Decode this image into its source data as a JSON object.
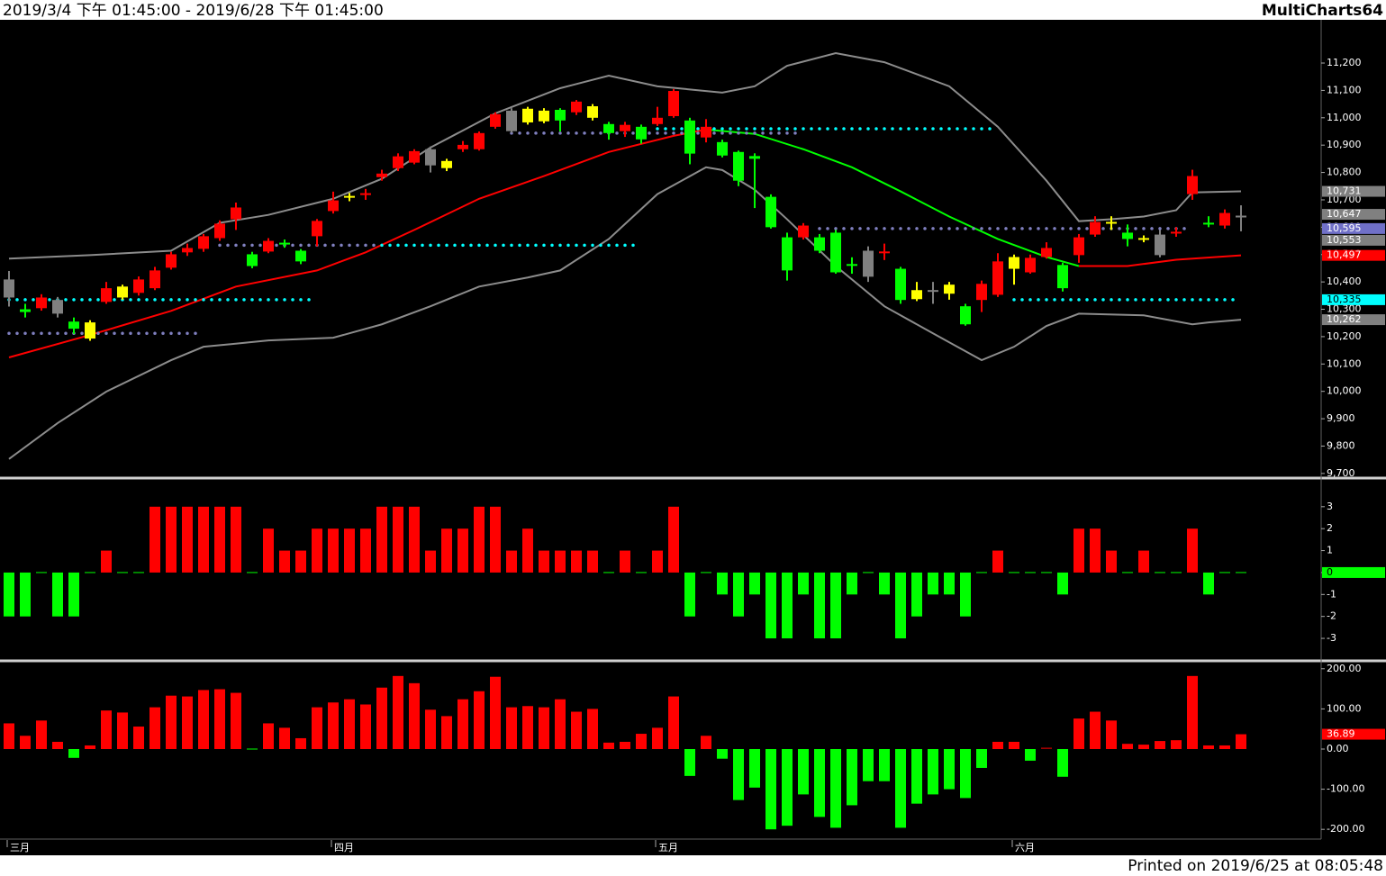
{
  "header": {
    "range": "2019/3/4 下午 01:45:00 - 2019/6/28 下午 01:45:00",
    "app": "MultiCharts64"
  },
  "footer": "Printed on 2019/6/25 at 08:05:48",
  "chart_data": [
    {
      "type": "candlestick",
      "categories": [
        "三月",
        null,
        null,
        null,
        null,
        null,
        null,
        null,
        null,
        null,
        null,
        null,
        null,
        null,
        null,
        null,
        null,
        null,
        null,
        null,
        "四月",
        null,
        null,
        null,
        null,
        null,
        null,
        null,
        null,
        null,
        null,
        null,
        null,
        null,
        null,
        null,
        null,
        null,
        null,
        null,
        "五月",
        null,
        null,
        null,
        null,
        null,
        null,
        null,
        null,
        null,
        null,
        null,
        null,
        null,
        null,
        null,
        null,
        null,
        null,
        null,
        null,
        null,
        "六月",
        null,
        null,
        null,
        null,
        null,
        null,
        null,
        null,
        null,
        null,
        null,
        null,
        null,
        null
      ],
      "open": [
        10409,
        10300,
        10304,
        10334,
        10255,
        10252,
        10327,
        10383,
        10360,
        10377,
        10452,
        10508,
        10521,
        10560,
        10629,
        10501,
        10511,
        10540,
        10514,
        10567,
        10659,
        10711,
        10721,
        10783,
        10816,
        10836,
        10885,
        10842,
        10885,
        10885,
        10967,
        11026,
        11033,
        11026,
        11029,
        11020,
        11042,
        10977,
        10951,
        10967,
        10977,
        11006,
        10990,
        10928,
        10911,
        10875,
        10860,
        10711,
        10563,
        10563,
        10563,
        10580,
        10462,
        10514,
        10508,
        10448,
        10370,
        10367,
        10390,
        10311,
        10334,
        10353,
        10491,
        10435,
        10491,
        10462,
        10498,
        10573,
        10616,
        10580,
        10557,
        10573,
        10580,
        10721,
        10613,
        10606,
        10639
      ],
      "high": [
        10440,
        10320,
        10355,
        10345,
        10270,
        10260,
        10400,
        10390,
        10420,
        10455,
        10510,
        10540,
        10575,
        10625,
        10690,
        10510,
        10560,
        10555,
        10520,
        10630,
        10730,
        10725,
        10740,
        10810,
        10870,
        10885,
        10895,
        10850,
        10915,
        10950,
        11020,
        11035,
        11040,
        11035,
        11035,
        11065,
        11050,
        10985,
        10985,
        10975,
        11040,
        11105,
        11000,
        10995,
        10920,
        10880,
        10870,
        10720,
        10580,
        10615,
        10575,
        10590,
        10490,
        10530,
        10540,
        10455,
        10400,
        10400,
        10400,
        10320,
        10405,
        10505,
        10500,
        10500,
        10545,
        10470,
        10575,
        10640,
        10640,
        10610,
        10570,
        10590,
        10600,
        10810,
        10640,
        10665,
        10680
      ],
      "low": [
        10310,
        10270,
        10295,
        10270,
        10210,
        10185,
        10320,
        10335,
        10350,
        10370,
        10445,
        10495,
        10510,
        10550,
        10590,
        10450,
        10505,
        10525,
        10465,
        10530,
        10650,
        10695,
        10700,
        10770,
        10805,
        10830,
        10800,
        10805,
        10875,
        10880,
        10960,
        10945,
        10975,
        10980,
        10950,
        11010,
        10990,
        10920,
        10930,
        10905,
        10970,
        11000,
        10830,
        10910,
        10855,
        10750,
        10670,
        10595,
        10405,
        10555,
        10505,
        10430,
        10430,
        10400,
        10480,
        10320,
        10330,
        10320,
        10335,
        10240,
        10290,
        10345,
        10390,
        10430,
        10485,
        10365,
        10470,
        10565,
        10590,
        10530,
        10545,
        10490,
        10565,
        10700,
        10600,
        10595,
        10585
      ],
      "close": [
        10343,
        10290,
        10343,
        10284,
        10229,
        10193,
        10377,
        10343,
        10409,
        10442,
        10501,
        10524,
        10567,
        10613,
        10672,
        10458,
        10550,
        10540,
        10475,
        10623,
        10698,
        10711,
        10721,
        10796,
        10859,
        10878,
        10826,
        10816,
        10901,
        10944,
        11013,
        10951,
        10983,
        10987,
        10990,
        11059,
        11000,
        10944,
        10974,
        10921,
        11000,
        11098,
        10869,
        10967,
        10862,
        10770,
        10850,
        10600,
        10442,
        10606,
        10514,
        10435,
        10462,
        10419,
        10508,
        10334,
        10337,
        10367,
        10357,
        10245,
        10393,
        10475,
        10448,
        10488,
        10524,
        10377,
        10563,
        10619,
        10616,
        10557,
        10557,
        10498,
        10580,
        10787,
        10613,
        10652,
        10639
      ],
      "colors": [
        "#808080",
        "#00ff00",
        "#ff0000",
        "#808080",
        "#00ff00",
        "#ffff00",
        "#ff0000",
        "#ffff00",
        "#ff0000",
        "#ff0000",
        "#ff0000",
        "#ff0000",
        "#ff0000",
        "#ff0000",
        "#ff0000",
        "#00ff00",
        "#ff0000",
        "#00ff00",
        "#00ff00",
        "#ff0000",
        "#ff0000",
        "#ffff00",
        "#ff0000",
        "#ff0000",
        "#ff0000",
        "#ff0000",
        "#808080",
        "#ffff00",
        "#ff0000",
        "#ff0000",
        "#ff0000",
        "#808080",
        "#ffff00",
        "#ffff00",
        "#00ff00",
        "#ff0000",
        "#ffff00",
        "#00ff00",
        "#ff0000",
        "#00ff00",
        "#ff0000",
        "#ff0000",
        "#00ff00",
        "#ff0000",
        "#00ff00",
        "#00ff00",
        "#00ff00",
        "#00ff00",
        "#00ff00",
        "#ff0000",
        "#00ff00",
        "#00ff00",
        "#00ff00",
        "#808080",
        "#ff0000",
        "#00ff00",
        "#ffff00",
        "#808080",
        "#ffff00",
        "#00ff00",
        "#ff0000",
        "#ff0000",
        "#ffff00",
        "#ff0000",
        "#ff0000",
        "#00ff00",
        "#ff0000",
        "#ff0000",
        "#ffff00",
        "#00ff00",
        "#ffff00",
        "#808080",
        "#ff0000",
        "#ff0000",
        "#00ff00",
        "#ff0000",
        "#808080"
      ],
      "lines": [
        {
          "color": "#8c8c8c",
          "x": [
            0,
            5,
            10,
            13,
            16,
            20,
            23,
            26,
            30,
            34,
            37,
            40,
            44,
            46,
            48,
            51,
            54,
            58,
            61,
            64,
            66,
            68,
            70,
            72,
            73,
            76
          ],
          "values": [
            10485,
            10498,
            10514,
            10616,
            10645,
            10704,
            10777,
            10891,
            11016,
            11108,
            11154,
            11115,
            11092,
            11115,
            11190,
            11236,
            11203,
            11115,
            10967,
            10770,
            10622,
            10629,
            10639,
            10662,
            10727,
            10731
          ]
        },
        {
          "color": "#8c8c8c",
          "x": [
            0,
            3,
            6,
            10,
            12,
            16,
            20,
            23,
            26,
            29,
            32,
            34,
            37,
            40,
            43,
            44,
            46,
            48,
            51,
            54,
            57,
            60,
            62,
            64,
            66,
            70,
            73,
            74,
            76
          ],
          "values": [
            9753,
            9884,
            9999,
            10114,
            10163,
            10186,
            10196,
            10245,
            10311,
            10383,
            10416,
            10442,
            10557,
            10721,
            10819,
            10809,
            10737,
            10629,
            10458,
            10311,
            10212,
            10114,
            10163,
            10239,
            10284,
            10278,
            10245,
            10252,
            10262
          ]
        },
        {
          "color": "#ff0000",
          "x": [
            0,
            5,
            10,
            14,
            19,
            22,
            25,
            29,
            33,
            37,
            41,
            43
          ],
          "values": [
            10124,
            10206,
            10294,
            10383,
            10442,
            10508,
            10590,
            10704,
            10787,
            10875,
            10934,
            10957
          ]
        },
        {
          "color": "#00ff00",
          "x": [
            43,
            46,
            49,
            52,
            55,
            58,
            61,
            64,
            66
          ],
          "values": [
            10957,
            10941,
            10885,
            10819,
            10731,
            10639,
            10557,
            10491,
            10458
          ]
        },
        {
          "color": "#ff0000",
          "x": [
            66,
            69,
            72,
            76
          ],
          "values": [
            10458,
            10458,
            10481,
            10497
          ]
        }
      ],
      "levels": [
        {
          "value": 10335,
          "from": 0,
          "to": 19,
          "color": "#00ffff"
        },
        {
          "value": 10212,
          "from": 0,
          "to": 12,
          "color": "#8080c0"
        },
        {
          "value": 10534,
          "from": 13,
          "to": 23,
          "color": "#8080c0"
        },
        {
          "value": 10534,
          "from": 23,
          "to": 39,
          "color": "#00ffff"
        },
        {
          "value": 10944,
          "from": 31,
          "to": 49,
          "color": "#8080c0"
        },
        {
          "value": 10960,
          "from": 40,
          "to": 61,
          "color": "#00ffff"
        },
        {
          "value": 10595,
          "from": 50,
          "to": 73,
          "color": "#8080c0"
        },
        {
          "value": 10335,
          "from": 62,
          "to": 76,
          "color": "#00ffff"
        }
      ],
      "price_labels": [
        {
          "value": 10731,
          "label": "10,731",
          "color": "#808080"
        },
        {
          "value": 10647,
          "label": "10,647",
          "color": "#808080"
        },
        {
          "value": 10595,
          "label": "10,595",
          "color": "#7070c8"
        },
        {
          "value": 10553,
          "label": "10,553",
          "color": "#808080"
        },
        {
          "value": 10497,
          "label": "10,497",
          "color": "#ff0000"
        },
        {
          "value": 10335,
          "label": "10,335",
          "color": "#00ffff"
        },
        {
          "value": 10262,
          "label": "10,262",
          "color": "#808080"
        }
      ],
      "ylim": [
        9693,
        11358
      ],
      "yticks": [
        {
          "value": 11200,
          "label": "11,200"
        },
        {
          "value": 11100,
          "label": "11,100"
        },
        {
          "value": 11000,
          "label": "11,000"
        },
        {
          "value": 10900,
          "label": "10,900"
        },
        {
          "value": 10800,
          "label": "10,800"
        },
        {
          "value": 10700,
          "label": "10,700"
        },
        {
          "value": 10600,
          "label": "10,600"
        },
        {
          "value": 10500,
          "label": "10,500"
        },
        {
          "value": 10400,
          "label": "10,400"
        },
        {
          "value": 10300,
          "label": "10,300"
        },
        {
          "value": 10200,
          "label": "10,200"
        },
        {
          "value": 10100,
          "label": "10,100"
        },
        {
          "value": 10000,
          "label": "10,000"
        },
        {
          "value": 9900,
          "label": "9,900"
        },
        {
          "value": 9800,
          "label": "9,800"
        },
        {
          "value": 9700,
          "label": "9,700"
        }
      ]
    },
    {
      "type": "bar",
      "values": [
        -2,
        -2,
        0,
        -2,
        -2,
        0,
        1,
        0,
        0,
        3,
        3,
        3,
        3,
        3,
        3,
        0,
        2,
        1,
        1,
        2,
        2,
        2,
        2,
        3,
        3,
        3,
        1,
        2,
        2,
        3,
        3,
        1,
        2,
        1,
        1,
        1,
        1,
        0,
        1,
        0,
        1,
        3,
        -2,
        0,
        -1,
        -2,
        -1,
        -3,
        -3,
        -1,
        -3,
        -3,
        -1,
        0,
        -1,
        -3,
        -2,
        -1,
        -1,
        -2,
        0,
        1,
        0,
        0,
        0,
        -1,
        2,
        2,
        1,
        0,
        1,
        0,
        0,
        2,
        -1,
        0,
        0
      ],
      "color": "#ff0000",
      "negative_color": "#00ff00",
      "last_value": 0,
      "last_color": "#00ff00",
      "ylim": [
        -3.9,
        4.1
      ],
      "yticks": [
        3,
        2,
        1,
        0,
        -1,
        -2,
        -3
      ]
    },
    {
      "type": "bar",
      "values": [
        64,
        33,
        71,
        18,
        -22,
        9,
        96,
        91,
        56,
        104,
        133,
        131,
        147,
        149,
        140,
        -2,
        64,
        53,
        27,
        104,
        116,
        124,
        111,
        153,
        182,
        164,
        98,
        82,
        124,
        144,
        180,
        104,
        107,
        104,
        124,
        93,
        100,
        16,
        18,
        38,
        53,
        131,
        -67,
        33,
        -24,
        -127,
        -96,
        -200,
        -191,
        -113,
        -169,
        -196,
        -140,
        -80,
        -80,
        -196,
        -136,
        -113,
        -100,
        -122,
        -47,
        18,
        18,
        -29,
        2,
        -69,
        76,
        93,
        71,
        13,
        11,
        20,
        22,
        182,
        9,
        9,
        36.89
      ],
      "color": "#ff0000",
      "negative_color": "#00ff00",
      "last_value": 36.89,
      "last_color": "#ff0000",
      "ylim": [
        -222,
        213
      ],
      "yticks": [
        {
          "value": 200,
          "label": "200.00"
        },
        {
          "value": 100,
          "label": "100.00"
        },
        {
          "value": 0,
          "label": "0.00"
        },
        {
          "value": -100,
          "label": "-100.00"
        },
        {
          "value": -200,
          "label": "-200.00"
        }
      ]
    }
  ]
}
